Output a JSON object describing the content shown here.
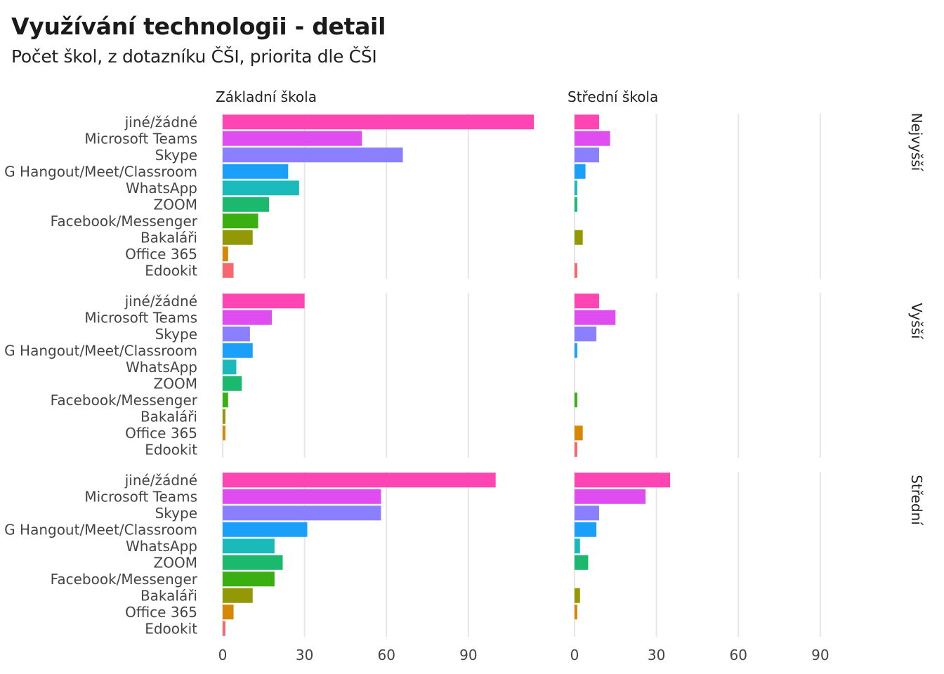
{
  "chart_data": {
    "type": "bar",
    "title": "Využívání technologii - detail",
    "subtitle": "Počet škol, z dotazníku ČŠI, priorita dle ČŠI",
    "columns": [
      "Základní škola",
      "Střední škola"
    ],
    "rows": [
      "Nejvyšší",
      "Vyšší",
      "Střední"
    ],
    "categories": [
      "jiné/žádné",
      "Microsoft Teams",
      "Skype",
      "G Hangout/Meet/Classroom",
      "WhatsApp",
      "ZOOM",
      "Facebook/Messenger",
      "Bakaláři",
      "Office 365",
      "Edookit"
    ],
    "colors": [
      "#FF45B4",
      "#DF4DF0",
      "#8A80FF",
      "#1AA0F8",
      "#1BBABA",
      "#1BB96E",
      "#3AAF11",
      "#939904",
      "#D68804",
      "#F7676D"
    ],
    "xlim": [
      0,
      120
    ],
    "xticks": [
      0,
      30,
      60,
      90
    ],
    "grid": true,
    "legend": "none",
    "panels": [
      {
        "row": "Nejvyšší",
        "column": "Základní škola",
        "values": [
          114,
          51,
          66,
          24,
          28,
          17,
          13,
          11,
          2,
          4
        ]
      },
      {
        "row": "Nejvyšší",
        "column": "Střední škola",
        "values": [
          9,
          13,
          9,
          4,
          1,
          1,
          0,
          3,
          0,
          1
        ]
      },
      {
        "row": "Vyšší",
        "column": "Základní škola",
        "values": [
          30,
          18,
          10,
          11,
          5,
          7,
          2,
          1,
          1,
          0
        ]
      },
      {
        "row": "Vyšší",
        "column": "Střední škola",
        "values": [
          9,
          15,
          8,
          1,
          0,
          0,
          1,
          0,
          3,
          1
        ]
      },
      {
        "row": "Střední",
        "column": "Základní škola",
        "values": [
          100,
          58,
          58,
          31,
          19,
          22,
          19,
          11,
          4,
          1
        ]
      },
      {
        "row": "Střední",
        "column": "Střední škola",
        "values": [
          35,
          26,
          9,
          8,
          2,
          5,
          0,
          2,
          1,
          0
        ]
      }
    ]
  }
}
